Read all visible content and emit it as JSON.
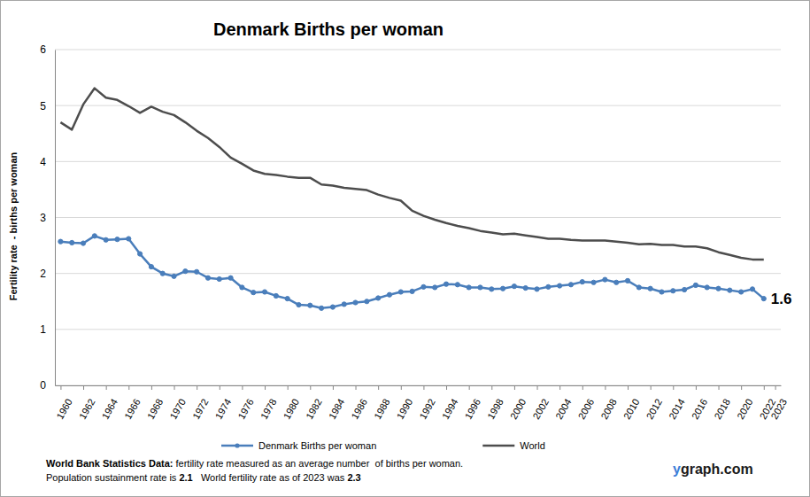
{
  "chart_data": {
    "type": "line",
    "title": "Denmark Births per woman",
    "y_label": "Fertility rate  - births per woman",
    "x": [
      1960,
      1961,
      1962,
      1963,
      1964,
      1965,
      1966,
      1967,
      1968,
      1969,
      1970,
      1971,
      1972,
      1973,
      1974,
      1975,
      1976,
      1977,
      1978,
      1979,
      1980,
      1981,
      1982,
      1983,
      1984,
      1985,
      1986,
      1987,
      1988,
      1989,
      1990,
      1991,
      1992,
      1993,
      1994,
      1995,
      1996,
      1997,
      1998,
      1999,
      2000,
      2001,
      2002,
      2003,
      2004,
      2005,
      2006,
      2007,
      2008,
      2009,
      2010,
      2011,
      2012,
      2013,
      2014,
      2015,
      2016,
      2017,
      2018,
      2019,
      2020,
      2021,
      2022
    ],
    "series": [
      {
        "name": "Denmark Births per woman",
        "color": "#4a7ebb",
        "marker": "circle",
        "values": [
          2.57,
          2.55,
          2.54,
          2.67,
          2.6,
          2.61,
          2.62,
          2.35,
          2.12,
          2.0,
          1.95,
          2.04,
          2.03,
          1.92,
          1.9,
          1.92,
          1.75,
          1.66,
          1.67,
          1.6,
          1.55,
          1.44,
          1.43,
          1.38,
          1.4,
          1.45,
          1.48,
          1.5,
          1.56,
          1.62,
          1.67,
          1.68,
          1.76,
          1.75,
          1.81,
          1.8,
          1.75,
          1.75,
          1.72,
          1.73,
          1.77,
          1.74,
          1.72,
          1.76,
          1.78,
          1.8,
          1.85,
          1.84,
          1.89,
          1.84,
          1.87,
          1.75,
          1.73,
          1.67,
          1.69,
          1.71,
          1.79,
          1.75,
          1.73,
          1.7,
          1.67,
          1.72,
          1.55
        ]
      },
      {
        "name": "World",
        "color": "#4d4d4d",
        "marker": "none",
        "values": [
          4.7,
          4.57,
          5.02,
          5.31,
          5.14,
          5.1,
          4.99,
          4.87,
          4.98,
          4.89,
          4.83,
          4.7,
          4.55,
          4.42,
          4.26,
          4.07,
          3.96,
          3.84,
          3.78,
          3.76,
          3.73,
          3.71,
          3.71,
          3.59,
          3.57,
          3.53,
          3.51,
          3.49,
          3.41,
          3.35,
          3.3,
          3.12,
          3.03,
          2.96,
          2.9,
          2.85,
          2.81,
          2.76,
          2.73,
          2.7,
          2.71,
          2.68,
          2.65,
          2.62,
          2.62,
          2.6,
          2.59,
          2.59,
          2.59,
          2.57,
          2.55,
          2.52,
          2.53,
          2.51,
          2.51,
          2.48,
          2.48,
          2.45,
          2.38,
          2.33,
          2.28,
          2.25,
          2.25
        ]
      }
    ],
    "xlim": [
      1959.5,
      2023.5
    ],
    "xticks": [
      1960,
      1962,
      1964,
      1966,
      1968,
      1970,
      1972,
      1974,
      1976,
      1978,
      1980,
      1982,
      1984,
      1986,
      1988,
      1990,
      1992,
      1994,
      1996,
      1998,
      2000,
      2002,
      2004,
      2006,
      2008,
      2010,
      2012,
      2014,
      2016,
      2018,
      2020,
      2022,
      2023
    ],
    "ylim": [
      0,
      6
    ],
    "yticks": [
      0,
      1,
      2,
      3,
      4,
      5,
      6
    ],
    "grid": true,
    "legend": "bottom",
    "annotations": [
      "1.6"
    ],
    "notes": [
      [
        "World Bank Statistics Data:",
        " fertility rate measured as an average number  of births per woman."
      ],
      [
        "Population sustainment rate is ",
        2.1,
        "   World fertility rate as of 2023 was ",
        2.3
      ]
    ],
    "source": "ygraph.com"
  }
}
